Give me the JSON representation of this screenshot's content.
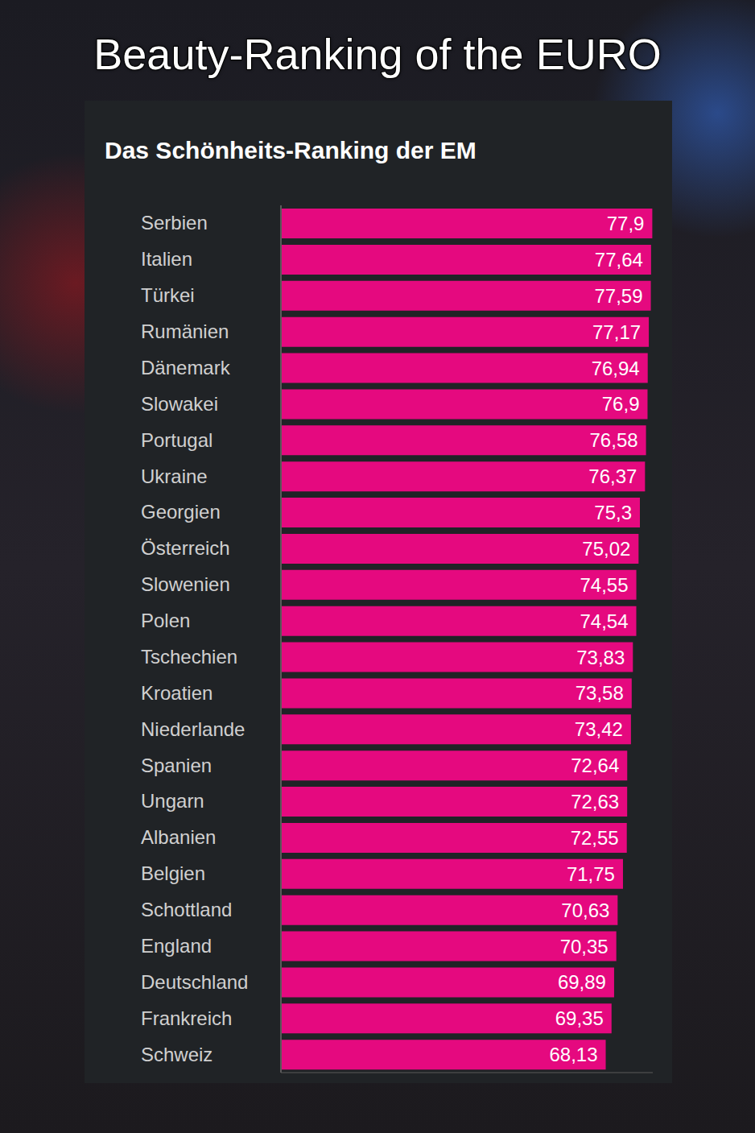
{
  "chart_data": {
    "type": "bar",
    "title": "Beauty-Ranking of the EURO",
    "subtitle": "Das Schönheits-Ranking der EM",
    "orientation": "horizontal",
    "categories": [
      "Serbien",
      "Italien",
      "Türkei",
      "Rumänien",
      "Dänemark",
      "Slowakei",
      "Portugal",
      "Ukraine",
      "Georgien",
      "Österreich",
      "Slowenien",
      "Polen",
      "Tschechien",
      "Kroatien",
      "Niederlande",
      "Spanien",
      "Ungarn",
      "Albanien",
      "Belgien",
      "Schottland",
      "England",
      "Deutschland",
      "Frankreich",
      "Schweiz"
    ],
    "values": [
      77.9,
      77.64,
      77.59,
      77.17,
      76.94,
      76.9,
      76.58,
      76.37,
      75.3,
      75.02,
      74.55,
      74.54,
      73.83,
      73.58,
      73.42,
      72.64,
      72.63,
      72.55,
      71.75,
      70.63,
      70.35,
      69.89,
      69.35,
      68.13
    ],
    "value_labels": [
      "77,9",
      "77,64",
      "77,59",
      "77,17",
      "76,94",
      "76,9",
      "76,58",
      "76,37",
      "75,3",
      "75,02",
      "74,55",
      "74,54",
      "73,83",
      "73,58",
      "73,42",
      "72,64",
      "72,63",
      "72,55",
      "71,75",
      "70,63",
      "70,35",
      "69,89",
      "69,35",
      "68,13"
    ],
    "color": "#e5097f",
    "xlim": [
      0,
      78
    ],
    "data_labels": true,
    "tick_labels": "y",
    "grid": false
  }
}
